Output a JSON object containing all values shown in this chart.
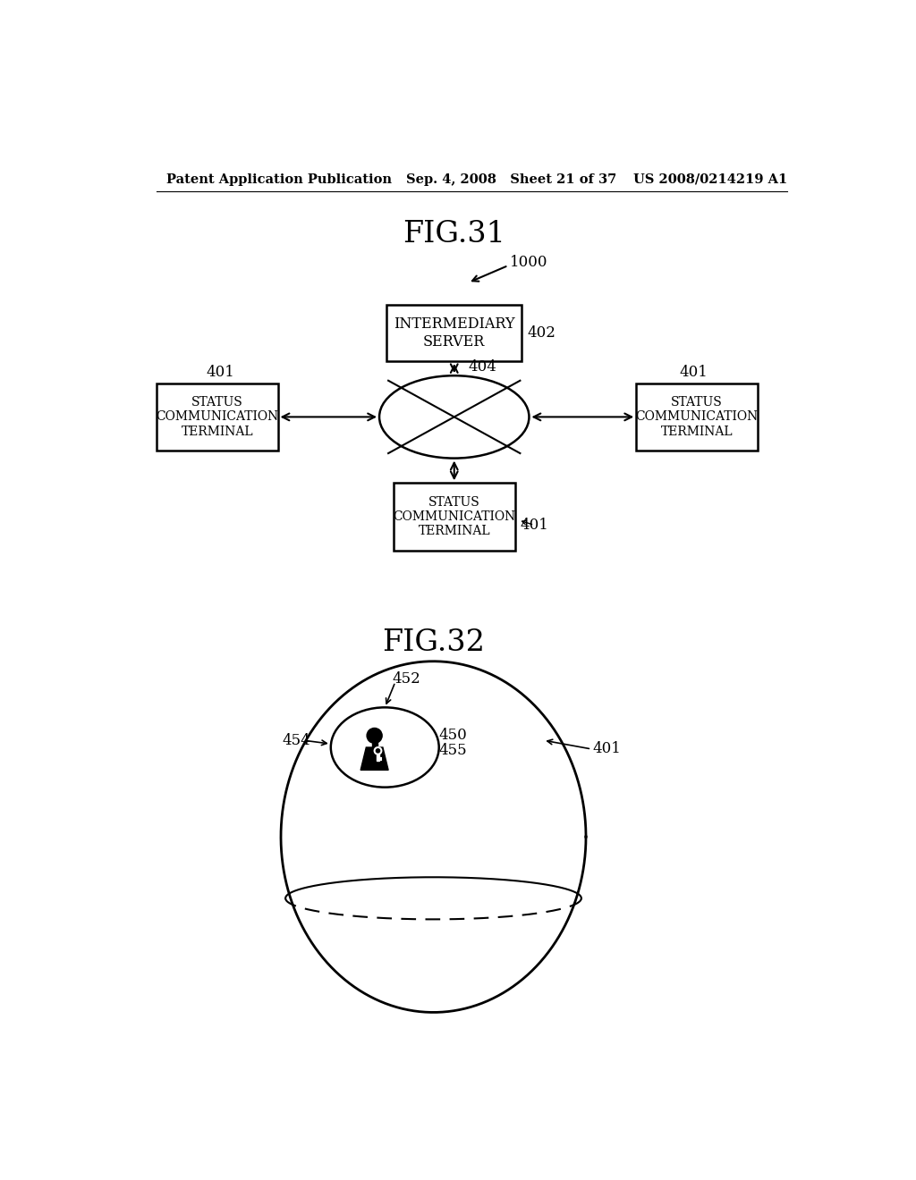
{
  "bg_color": "#ffffff",
  "header_left": "Patent Application Publication",
  "header_center": "Sep. 4, 2008   Sheet 21 of 37",
  "header_right": "US 2008/0214219 A1",
  "fig31_title": "FIG.31",
  "fig32_title": "FIG.32",
  "fig31_server_text": "INTERMEDIARY\nSERVER",
  "fig31_terminal_text": "STATUS\nCOMMUNICATION\nTERMINAL",
  "label_1000": "1000",
  "label_402": "402",
  "label_404": "404",
  "label_401": "401",
  "label_452": "452",
  "label_454": "454",
  "label_450": "450",
  "label_455": "455"
}
